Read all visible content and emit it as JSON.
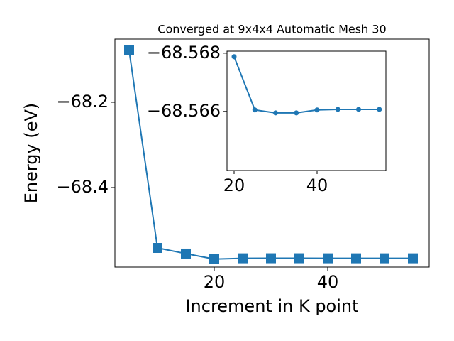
{
  "chart_data": [
    {
      "type": "line",
      "title": "Converged at 9x4x4 Automatic Mesh 30",
      "x_label": "Increment in K point",
      "y_label": "Energy (eV)",
      "x": [
        5,
        10,
        15,
        20,
        25,
        30,
        35,
        40,
        45,
        50,
        55
      ],
      "series": [
        {
          "color": "#1f77b4",
          "marker": "square",
          "values": [
            -68.0783,
            -68.5417,
            -68.555,
            -68.56788,
            -68.56605,
            -68.56595,
            -68.56595,
            -68.56605,
            -68.56607,
            -68.56607,
            -68.56607
          ]
        }
      ],
      "xlim": [
        2.5,
        57.875
      ],
      "ylim": [
        -68.5867,
        -68.0517
      ],
      "xticks": [
        20,
        40
      ],
      "yticks": [
        {
          "value": -68.2,
          "label": "−68.2"
        },
        {
          "value": -68.4,
          "label": "−68.4"
        }
      ]
    },
    {
      "type": "line",
      "x": [
        20,
        25,
        30,
        35,
        40,
        45,
        50,
        55
      ],
      "series": [
        {
          "color": "#1f77b4",
          "marker": "circle",
          "values": [
            -68.56788,
            -68.56605,
            -68.56595,
            -68.56595,
            -68.56605,
            -68.56607,
            -68.56607,
            -68.56607
          ]
        }
      ],
      "xlim": [
        18.29,
        56.58
      ],
      "ylim": [
        -68.56397,
        -68.56807
      ],
      "xticks": [
        20,
        40
      ],
      "yticks": [
        {
          "value": -68.568,
          "label": "−68.568"
        },
        {
          "value": -68.566,
          "label": "−68.566"
        }
      ]
    }
  ]
}
